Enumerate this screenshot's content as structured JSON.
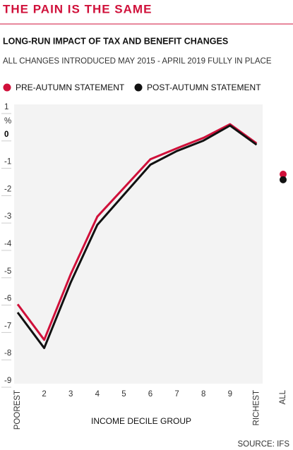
{
  "chart_data": {
    "type": "line",
    "title": "THE PAIN IS THE SAME",
    "subtitle": "LONG-RUN IMPACT OF TAX AND BENEFIT CHANGES",
    "note": "ALL CHANGES INTRODUCED MAY 2015 - APRIL 2019 FULLY IN PLACE",
    "x_label": "INCOME DECILE GROUP",
    "y_unit": "%",
    "source": "SOURCE: IFS",
    "categories": [
      "POOREST",
      "2",
      "3",
      "4",
      "5",
      "6",
      "7",
      "8",
      "9",
      "RICHEST"
    ],
    "summary_category": "ALL",
    "series": [
      {
        "name": "PRE-AUTUMN STATEMENT",
        "color": "#d0103a",
        "values": [
          -6.2,
          -7.5,
          -5.1,
          -3.0,
          -1.95,
          -0.9,
          -0.5,
          -0.12,
          0.38,
          -0.32
        ],
        "summary_value": -1.45
      },
      {
        "name": "POST-AUTUMN STATEMENT",
        "color": "#111111",
        "values": [
          -6.5,
          -7.8,
          -5.4,
          -3.3,
          -2.2,
          -1.1,
          -0.6,
          -0.22,
          0.33,
          -0.37
        ],
        "summary_value": -1.65
      }
    ],
    "ylim": [
      -9,
      1
    ],
    "yticks": [
      1,
      0,
      -1,
      -2,
      -3,
      -4,
      -5,
      -6,
      -7,
      -8,
      -9
    ]
  }
}
